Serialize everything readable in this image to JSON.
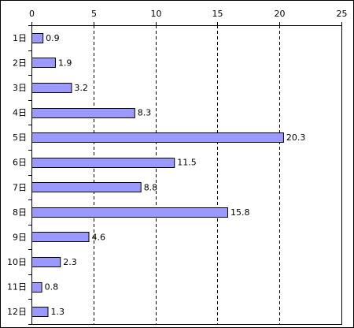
{
  "chart_data": {
    "type": "bar",
    "orientation": "horizontal",
    "categories": [
      "1日",
      "2日",
      "3日",
      "4日",
      "5日",
      "6日",
      "7日",
      "8日",
      "9日",
      "10日",
      "11日",
      "12日"
    ],
    "values": [
      0.9,
      1.9,
      3.2,
      8.3,
      20.3,
      11.5,
      8.8,
      15.8,
      4.6,
      2.3,
      0.8,
      1.3
    ],
    "value_labels": [
      "0.9",
      "1.9",
      "3.2",
      "8.3",
      "20.3",
      "11.5",
      "8.8",
      "15.8",
      "4.6",
      "2.3",
      "0.8",
      "1.3"
    ],
    "x_ticks": [
      "0",
      "5",
      "10",
      "15",
      "20",
      "25"
    ],
    "xlim": [
      0,
      25
    ],
    "title": "",
    "xlabel": "",
    "ylabel": "",
    "x_axis_position": "top",
    "grid": "vertical dashed",
    "legend": "none",
    "bar_color": "#9999ff",
    "bar_edge_color": "#000000"
  }
}
